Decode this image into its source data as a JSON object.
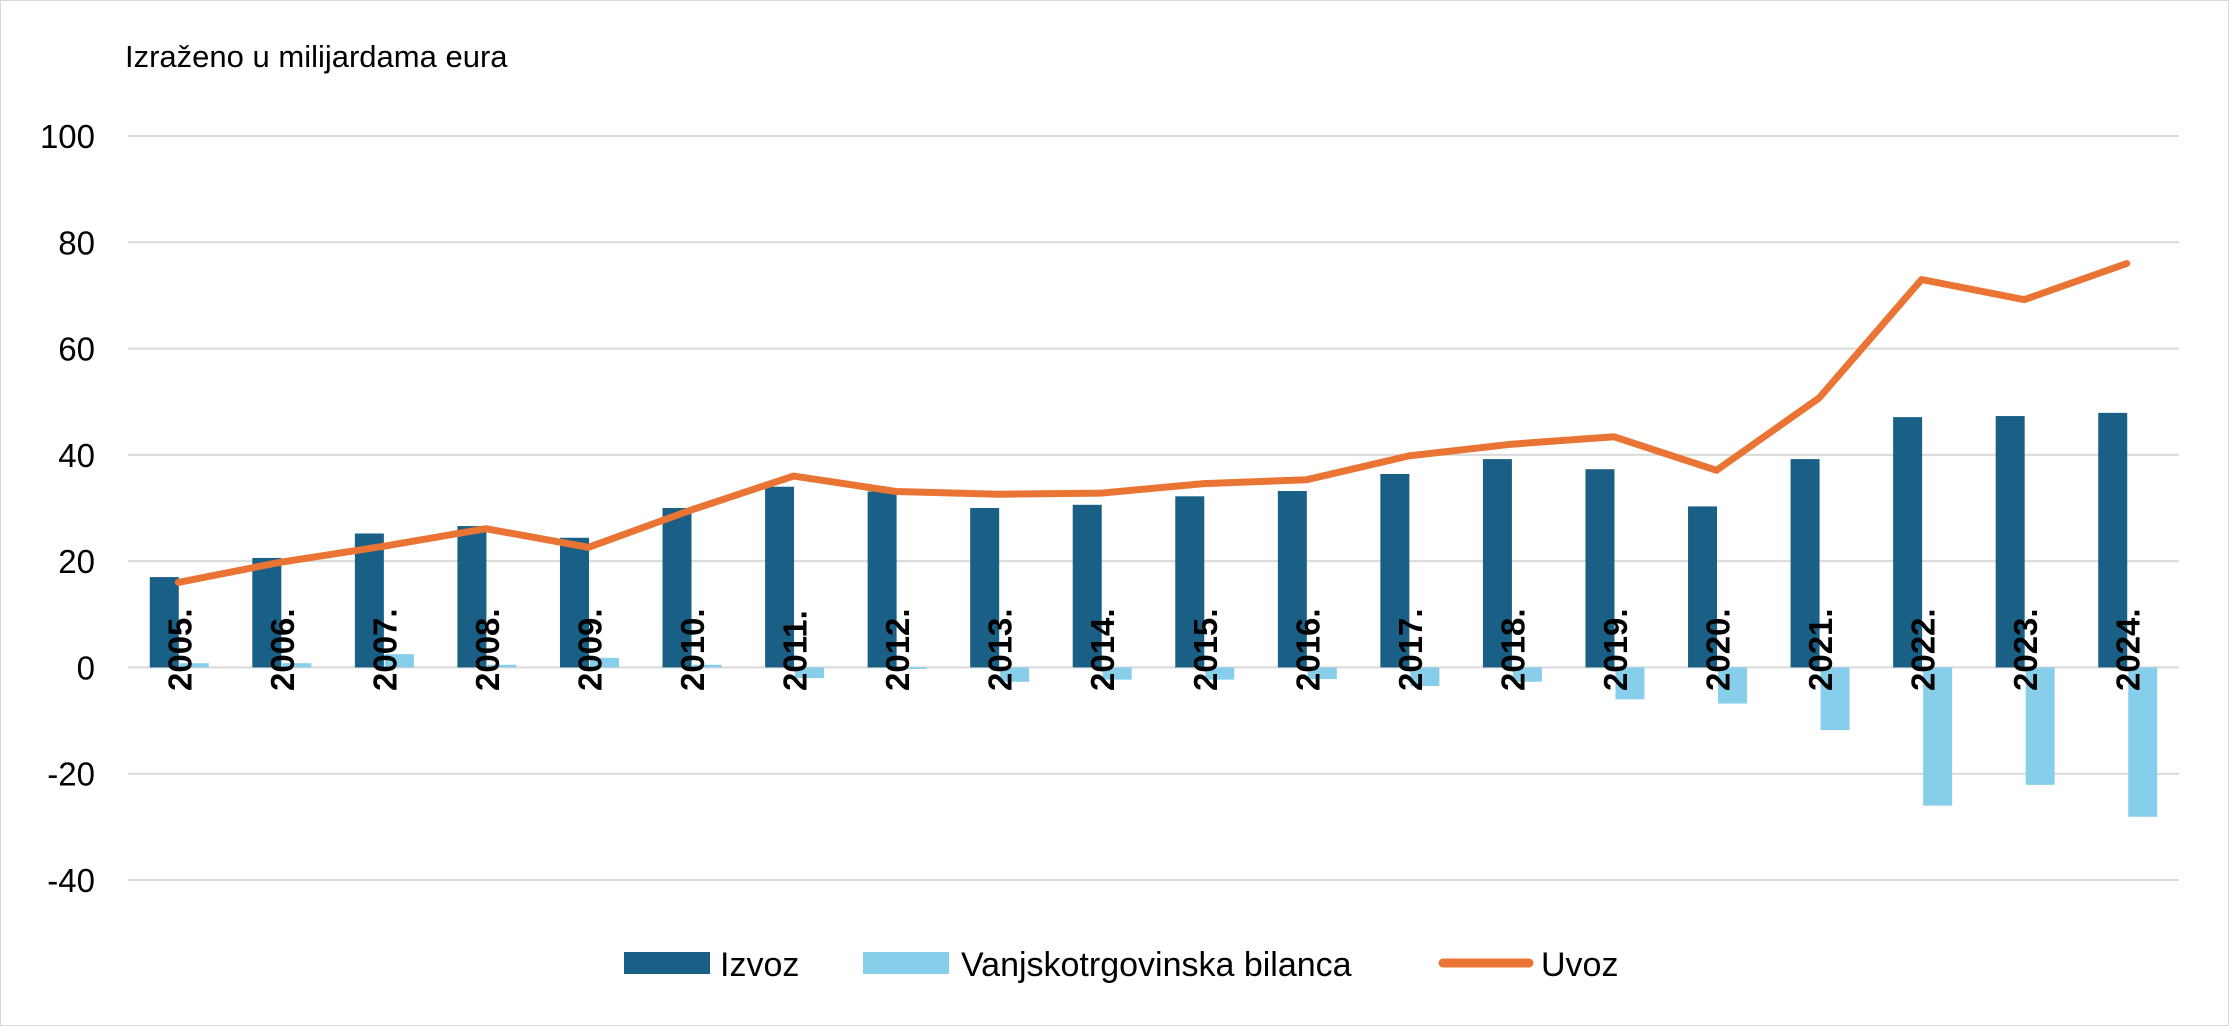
{
  "chart_data": {
    "type": "bar",
    "unit_label": "Izraženo u milijardama eura",
    "categories": [
      "2005.",
      "2006.",
      "2007.",
      "2008.",
      "2009.",
      "2010.",
      "2011.",
      "2012.",
      "2013.",
      "2014.",
      "2015.",
      "2016.",
      "2017.",
      "2018.",
      "2019.",
      "2020.",
      "2021.",
      "2022.",
      "2023.",
      "2024."
    ],
    "series": [
      {
        "name": "Izvoz",
        "kind": "bar",
        "color": "#1a5f85",
        "values": [
          17,
          20.6,
          25.2,
          26.6,
          24.4,
          30,
          34,
          33.1,
          30,
          30.6,
          32.2,
          33.2,
          36.4,
          39.2,
          37.3,
          30.3,
          39.2,
          47.1,
          47.3,
          47.9
        ]
      },
      {
        "name": "Vanjskotrgovinska bilanca",
        "kind": "bar",
        "color": "#87ceeb",
        "values": [
          0.8,
          0.8,
          2.5,
          0.5,
          1.8,
          0.5,
          -2,
          -0.3,
          -2.7,
          -2.3,
          -2.3,
          -2.2,
          -3.5,
          -2.7,
          -6,
          -6.8,
          -11.8,
          -26,
          -22.1,
          -28.1
        ]
      },
      {
        "name": "Uvoz",
        "kind": "line",
        "color": "#e97434",
        "values": [
          16,
          19.8,
          22.8,
          26.1,
          22.6,
          29.6,
          36,
          33.1,
          32.6,
          32.8,
          34.6,
          35.3,
          39.8,
          42,
          43.4,
          37.1,
          50.7,
          73,
          69.2,
          76
        ]
      }
    ],
    "ylim": [
      -40,
      100
    ],
    "yticks": [
      100,
      80,
      60,
      40,
      20,
      0,
      -20,
      -40
    ],
    "ytick_labels": [
      "100",
      "80",
      "60",
      "40",
      "20",
      "0",
      "-20",
      "-40"
    ],
    "grid": true,
    "legend_position": "bottom"
  }
}
